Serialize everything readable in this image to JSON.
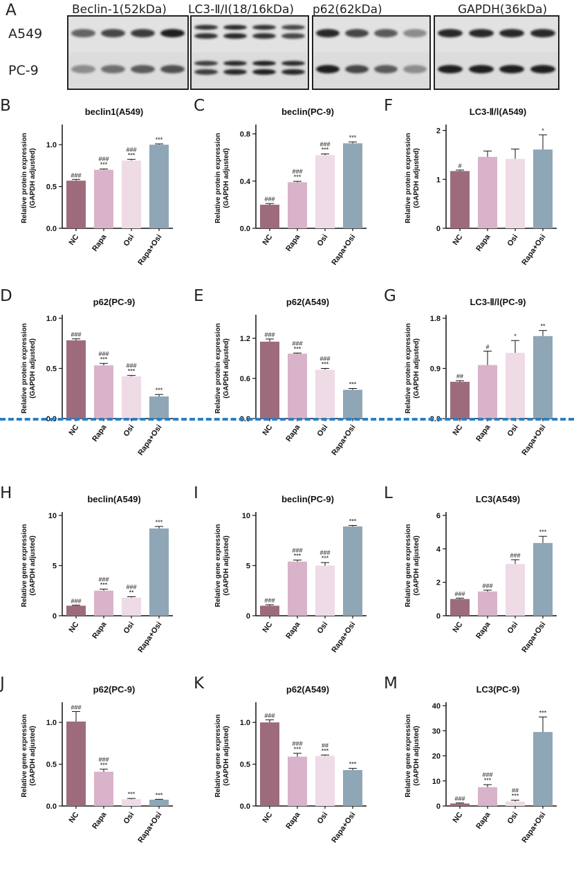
{
  "blots": {
    "panel_letter": "A",
    "cell_lines": [
      "A549",
      "PC-9"
    ],
    "proteins": [
      "Beclin-1(52kDa)",
      "LC3-Ⅱ/Ⅰ(18/16kDa)",
      "p62(62kDa)",
      "GAPDH(36kDa)"
    ]
  },
  "colors": {
    "NC": "#9e6b7d",
    "Rapa": "#d9b3c9",
    "Osi": "#eedbe6",
    "Rapa+Osi": "#8fa6b6",
    "divider": "#2a7fc3"
  },
  "chart_data": [
    {
      "id": "B",
      "type": "bar",
      "title": "beclin1(A549)",
      "ylabel": "Relative protein expression\n(GAPDH adjusted)",
      "categories": [
        "NC",
        "Rapa",
        "Osi",
        "Rapa+Osi"
      ],
      "values": [
        0.57,
        0.7,
        0.81,
        1.0
      ],
      "errors": [
        0.015,
        0.01,
        0.015,
        0.01
      ],
      "ylim": [
        0,
        1.2
      ],
      "yticks": [
        "0.0",
        "0.5",
        "1.0"
      ],
      "ytick_values": [
        0,
        0.5,
        1.0
      ],
      "annotations": [
        [
          "###"
        ],
        [
          "###",
          "***"
        ],
        [
          "###",
          "***"
        ],
        [
          "***"
        ]
      ]
    },
    {
      "id": "C",
      "type": "bar",
      "title": "beclin(PC-9)",
      "ylabel": "Relative protein expression\n(GAPDH adjusted)",
      "categories": [
        "NC",
        "Rapa",
        "Osi",
        "Rapa+Osi"
      ],
      "values": [
        0.2,
        0.39,
        0.62,
        0.72
      ],
      "errors": [
        0.01,
        0.008,
        0.01,
        0.012
      ],
      "ylim": [
        0,
        0.85
      ],
      "yticks": [
        "0.0",
        "0.4",
        "0.8"
      ],
      "ytick_values": [
        0,
        0.4,
        0.8
      ],
      "annotations": [
        [
          "###"
        ],
        [
          "###",
          "***"
        ],
        [
          "###",
          "***"
        ],
        [
          "***"
        ]
      ]
    },
    {
      "id": "F",
      "type": "bar",
      "title": "LC3-Ⅱ/Ⅰ(A549)",
      "ylabel": "Relative protein expression\n(GAPDH adjusted)",
      "categories": [
        "NC",
        "Rapa",
        "Osi",
        "Rapa+Osi"
      ],
      "values": [
        1.17,
        1.46,
        1.42,
        1.61
      ],
      "errors": [
        0.02,
        0.12,
        0.2,
        0.3
      ],
      "ylim": [
        0,
        2.05
      ],
      "yticks": [
        "0",
        "1",
        "2"
      ],
      "ytick_values": [
        0,
        1,
        2
      ],
      "annotations": [
        [
          "#"
        ],
        [],
        [],
        [
          "*"
        ]
      ]
    },
    {
      "id": "D",
      "type": "bar",
      "title": "p62(PC-9)",
      "ylabel": "Relative protein expression\n(GAPDH adjusted)",
      "categories": [
        "NC",
        "Rapa",
        "Osi",
        "Rapa+Osi"
      ],
      "values": [
        0.78,
        0.53,
        0.42,
        0.22
      ],
      "errors": [
        0.015,
        0.02,
        0.01,
        0.02
      ],
      "ylim": [
        0,
        1.0
      ],
      "yticks": [
        "0.0",
        "0.5",
        "1.0"
      ],
      "ytick_values": [
        0,
        0.5,
        1.0
      ],
      "annotations": [
        [
          "###"
        ],
        [
          "###",
          "***"
        ],
        [
          "###",
          "***"
        ],
        [
          "***"
        ]
      ]
    },
    {
      "id": "E",
      "type": "bar",
      "title": "p62(A549)",
      "ylabel": "Relative protein expression\n(GAPDH adjusted)",
      "categories": [
        "NC",
        "Rapa",
        "Osi",
        "Rapa+Osi"
      ],
      "values": [
        1.15,
        0.97,
        0.73,
        0.43
      ],
      "errors": [
        0.04,
        0.01,
        0.02,
        0.02
      ],
      "ylim": [
        0,
        1.5
      ],
      "yticks": [
        "0.0",
        "0.6",
        "1.2"
      ],
      "ytick_values": [
        0,
        0.6,
        1.2
      ],
      "annotations": [
        [
          "###"
        ],
        [
          "###",
          "***"
        ],
        [
          "###",
          "***"
        ],
        [
          "***"
        ]
      ]
    },
    {
      "id": "G",
      "type": "bar",
      "title": "LC3-Ⅱ/Ⅰ(PC-9)",
      "ylabel": "Relative protein expression\n(GAPDH adjusted)",
      "categories": [
        "NC",
        "Rapa",
        "Osi",
        "Rapa+Osi"
      ],
      "values": [
        0.66,
        0.96,
        1.18,
        1.48
      ],
      "errors": [
        0.02,
        0.25,
        0.22,
        0.1
      ],
      "ylim": [
        0,
        1.8
      ],
      "yticks": [
        "0.0",
        "0.9",
        "1.8"
      ],
      "ytick_values": [
        0,
        0.9,
        1.8
      ],
      "annotations": [
        [
          "##"
        ],
        [
          "#"
        ],
        [
          "*"
        ],
        [
          "**"
        ]
      ]
    },
    {
      "id": "H",
      "type": "bar",
      "title": "beclin(A549)",
      "ylabel": "Relative gene expression\n(GAPDH adjusted)",
      "categories": [
        "NC",
        "Rapa",
        "Osi",
        "Rapa+Osi"
      ],
      "values": [
        1.0,
        2.5,
        1.8,
        8.7
      ],
      "errors": [
        0.05,
        0.15,
        0.1,
        0.2
      ],
      "ylim": [
        0,
        10
      ],
      "yticks": [
        "0",
        "5",
        "10"
      ],
      "ytick_values": [
        0,
        5,
        10
      ],
      "annotations": [
        [
          "###"
        ],
        [
          "###",
          "***"
        ],
        [
          "###",
          "**"
        ],
        [
          "***"
        ]
      ]
    },
    {
      "id": "I",
      "type": "bar",
      "title": "beclin(PC-9)",
      "ylabel": "Relative gene expression\n(GAPDH adjusted)",
      "categories": [
        "NC",
        "Rapa",
        "Osi",
        "Rapa+Osi"
      ],
      "values": [
        1.0,
        5.4,
        5.0,
        8.9
      ],
      "errors": [
        0.1,
        0.15,
        0.3,
        0.1
      ],
      "ylim": [
        0,
        10
      ],
      "yticks": [
        "0",
        "5",
        "10"
      ],
      "ytick_values": [
        0,
        5,
        10
      ],
      "annotations": [
        [
          "###"
        ],
        [
          "###",
          "***"
        ],
        [
          "###",
          "***"
        ],
        [
          "***"
        ]
      ]
    },
    {
      "id": "L",
      "type": "bar",
      "title": "LC3(A549)",
      "ylabel": "Relative gene expression\n(GAPDH adjusted)",
      "categories": [
        "NC",
        "Rapa",
        "Osi",
        "Rapa+Osi"
      ],
      "values": [
        1.0,
        1.45,
        3.1,
        4.35
      ],
      "errors": [
        0.05,
        0.08,
        0.25,
        0.4
      ],
      "ylim": [
        0,
        6
      ],
      "yticks": [
        "0",
        "2",
        "4",
        "6"
      ],
      "ytick_values": [
        0,
        2,
        4,
        6
      ],
      "annotations": [
        [
          "###"
        ],
        [
          "###"
        ],
        [
          "###"
        ],
        [
          "***"
        ]
      ]
    },
    {
      "id": "J",
      "type": "bar",
      "title": "p62(PC-9)",
      "ylabel": "Relative gene expression\n(GAPDH adjusted)",
      "categories": [
        "NC",
        "Rapa",
        "Osi",
        "Rapa+Osi"
      ],
      "values": [
        1.01,
        0.41,
        0.08,
        0.075
      ],
      "errors": [
        0.12,
        0.03,
        0.01,
        0.005
      ],
      "ylim": [
        0,
        1.2
      ],
      "yticks": [
        "0.0",
        "0.5",
        "1.0"
      ],
      "ytick_values": [
        0,
        0.5,
        1.0
      ],
      "annotations": [
        [
          "###"
        ],
        [
          "###",
          "***"
        ],
        [
          "***"
        ],
        [
          "***"
        ]
      ]
    },
    {
      "id": "K",
      "type": "bar",
      "title": "p62(A549)",
      "ylabel": "Relative gene expression\n(GAPDH adjusted)",
      "categories": [
        "NC",
        "Rapa",
        "Osi",
        "Rapa+Osi"
      ],
      "values": [
        1.0,
        0.59,
        0.6,
        0.43
      ],
      "errors": [
        0.03,
        0.04,
        0.01,
        0.02
      ],
      "ylim": [
        0,
        1.2
      ],
      "yticks": [
        "0.0",
        "0.5",
        "1.0"
      ],
      "ytick_values": [
        0,
        0.5,
        1.0
      ],
      "annotations": [
        [
          "###"
        ],
        [
          "###",
          "***"
        ],
        [
          "##",
          "***"
        ],
        [
          "***"
        ]
      ]
    },
    {
      "id": "M",
      "type": "bar",
      "title": "LC3(PC-9)",
      "ylabel": "Relative gene expression\n(GAPDH adjusted)",
      "categories": [
        "NC",
        "Rapa",
        "Osi",
        "Rapa+Osi"
      ],
      "values": [
        1.0,
        7.5,
        1.8,
        29.5
      ],
      "errors": [
        0.2,
        1.0,
        0.5,
        6.0
      ],
      "ylim": [
        0,
        40
      ],
      "yticks": [
        "0",
        "10",
        "20",
        "30",
        "40"
      ],
      "ytick_values": [
        0,
        10,
        20,
        30,
        40
      ],
      "annotations": [
        [
          "###"
        ],
        [
          "###",
          "***"
        ],
        [
          "##",
          "***"
        ],
        [
          "***"
        ]
      ]
    }
  ]
}
